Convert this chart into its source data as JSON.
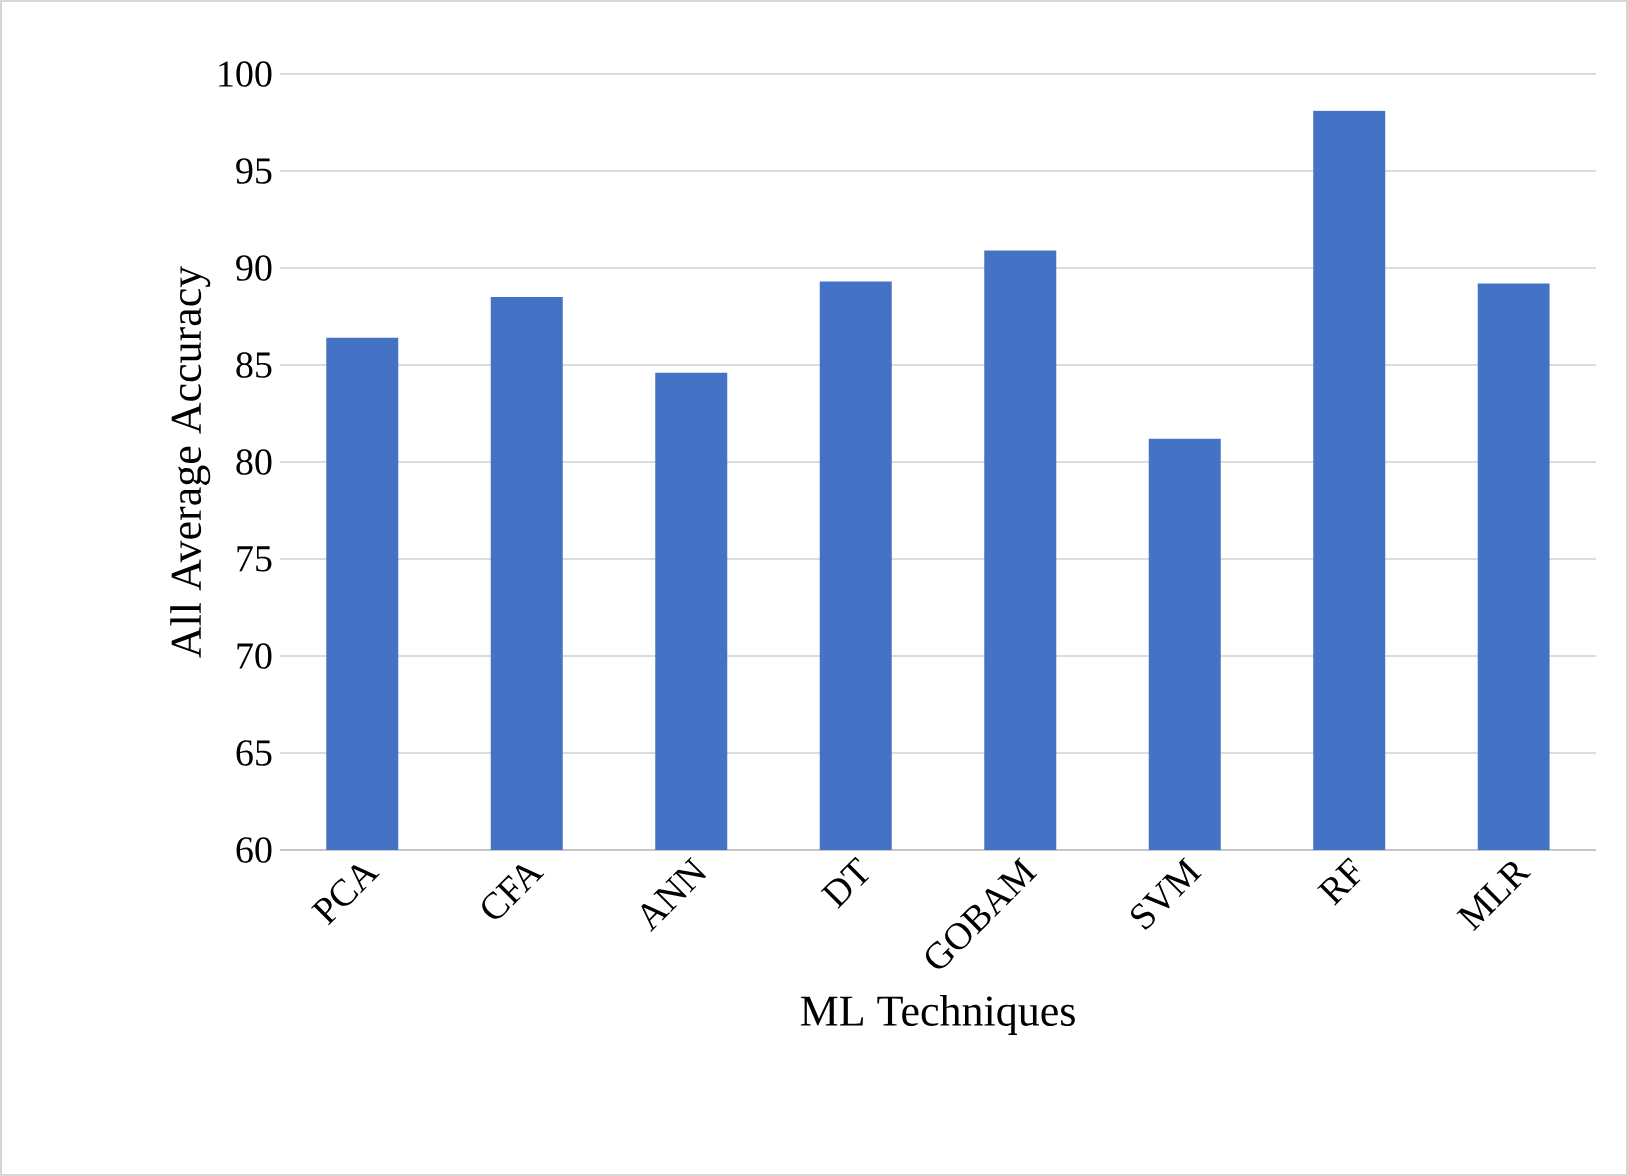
{
  "chart_data": {
    "type": "bar",
    "xlabel": "ML Techniques",
    "ylabel": "All Average Accuracy",
    "categories": [
      "PCA",
      "CFA",
      "ANN",
      "DT",
      "GOBAM",
      "SVM",
      "RF",
      "MLR"
    ],
    "values": [
      86.4,
      88.5,
      84.6,
      89.3,
      90.9,
      81.2,
      98.1,
      89.2
    ],
    "color": "#4472c4",
    "ylim": [
      60,
      100
    ],
    "yticks": [
      60,
      65,
      70,
      75,
      80,
      85,
      90,
      95,
      100
    ],
    "grid": "y"
  }
}
